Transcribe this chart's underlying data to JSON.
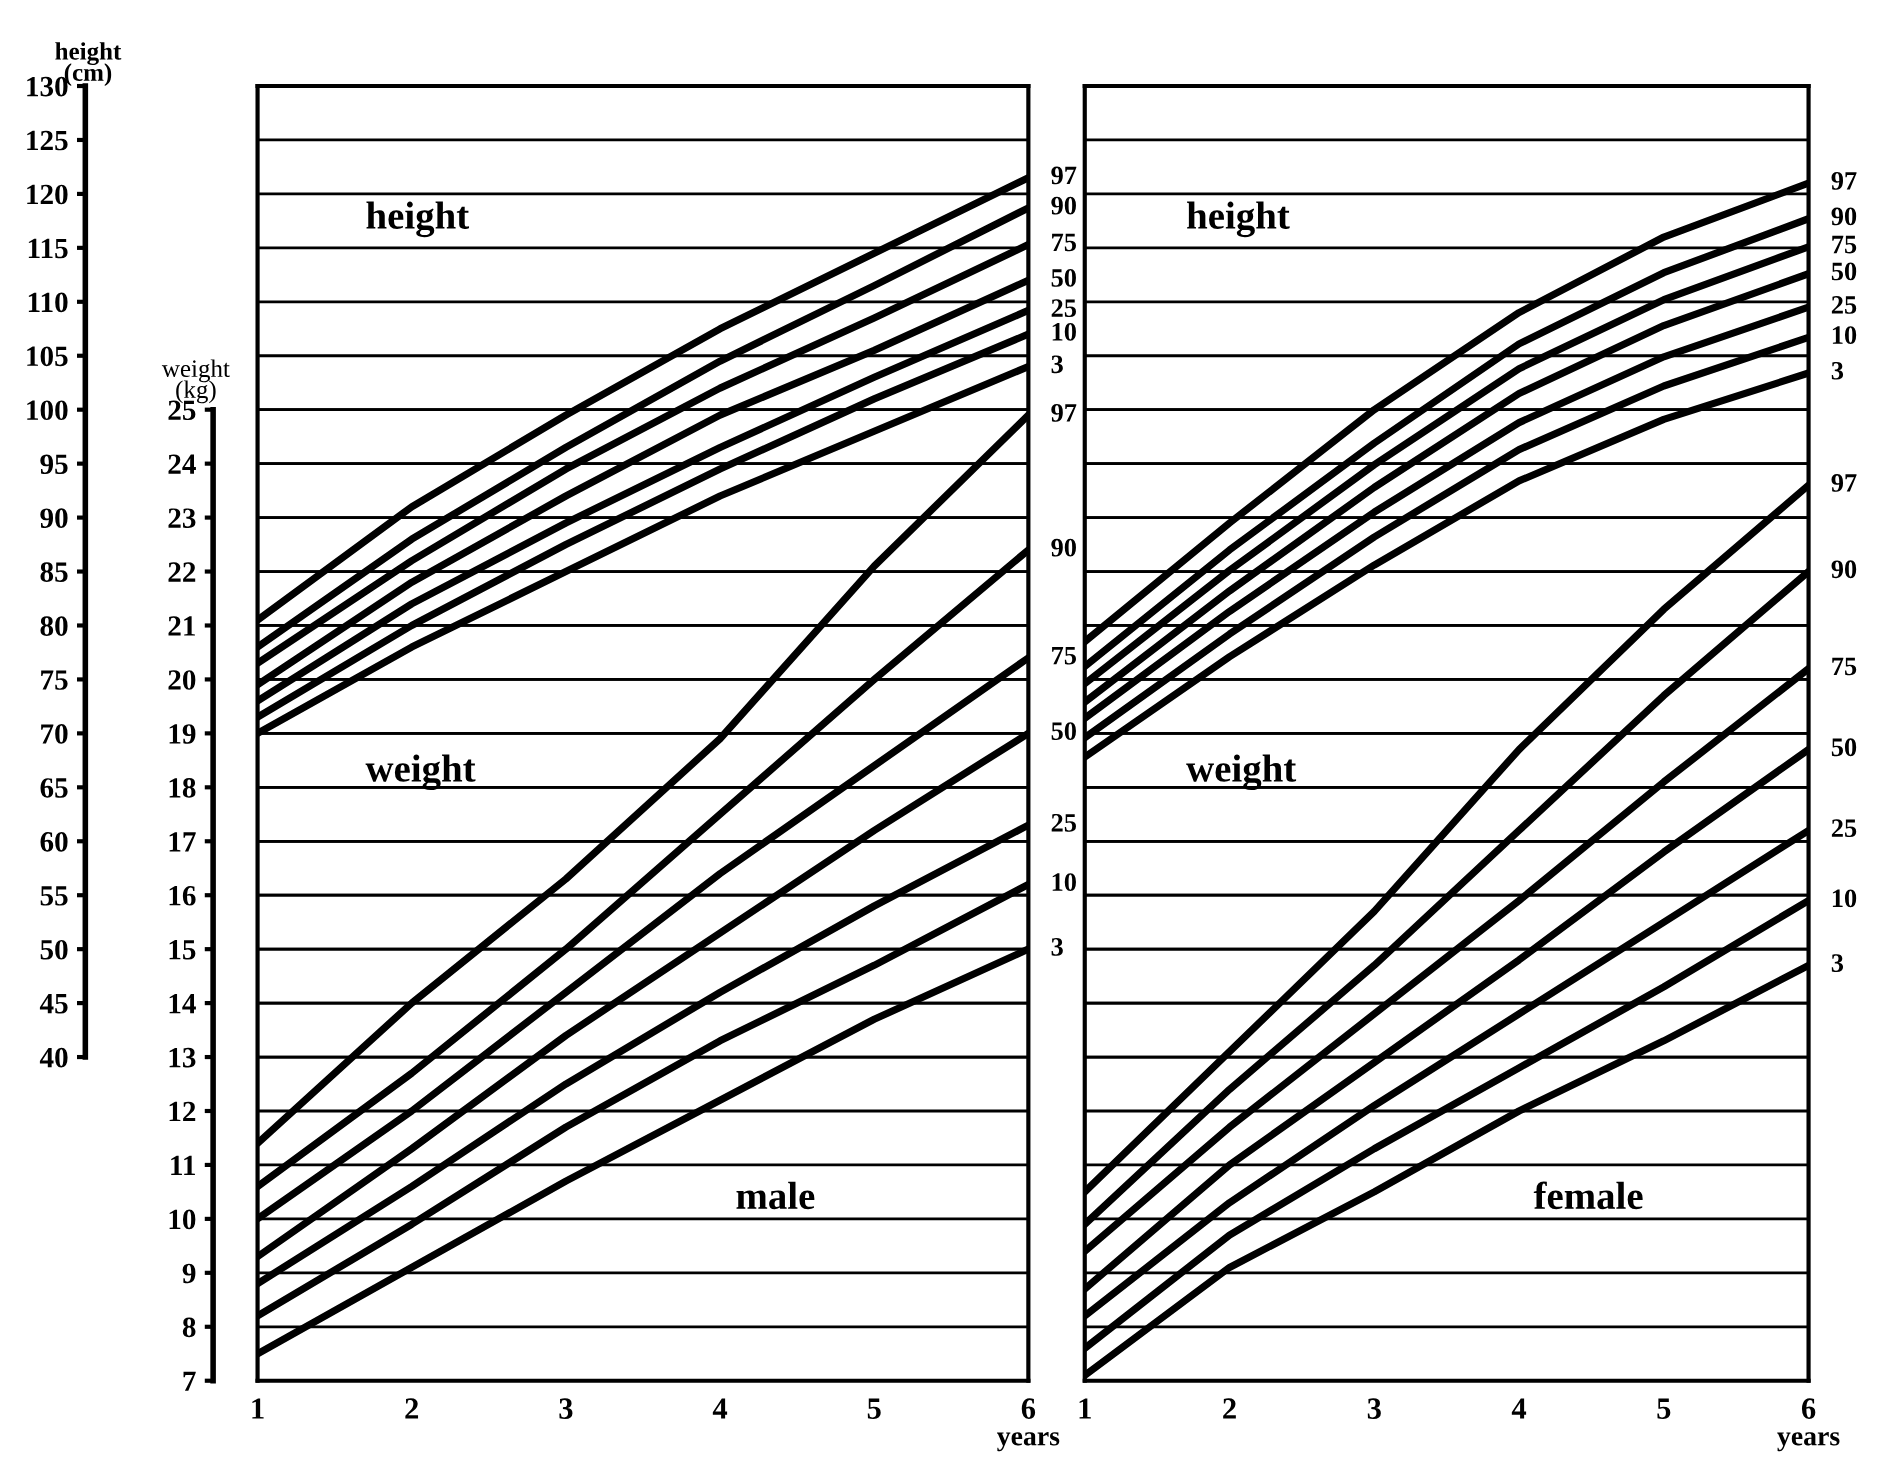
{
  "chart_data": [
    {
      "type": "line",
      "x": [
        1,
        2,
        3,
        4,
        5,
        6
      ],
      "xlim": [
        1,
        6
      ],
      "xticks": [
        1,
        2,
        3,
        4,
        5,
        6
      ],
      "xlabel": "years",
      "ylabel": "height\n(cm)",
      "y2label": "weight\n(kg)",
      "ylim": [
        10,
        130
      ],
      "yticks": [
        40,
        45,
        50,
        55,
        60,
        65,
        70,
        75,
        80,
        85,
        90,
        95,
        100,
        105,
        110,
        115,
        120,
        125,
        130
      ],
      "y2lim": [
        7,
        31
      ],
      "y2ticks": [
        7,
        8,
        9,
        10,
        11,
        12,
        13,
        14,
        15,
        16,
        17,
        18,
        19,
        20,
        21,
        22,
        23,
        24,
        25
      ],
      "grid": "y",
      "line_style": "solid",
      "annotations": [
        "height",
        "weight",
        "male"
      ],
      "series": [
        {
          "name": "97",
          "color": "#000000",
          "values": [
            80.5,
            91,
            99.5,
            107.5,
            114.5,
            121.5
          ]
        },
        {
          "name": "90",
          "color": "#000000",
          "values": [
            78,
            88,
            96.5,
            104.5,
            111.5,
            118.7
          ]
        },
        {
          "name": "75",
          "color": "#000000",
          "values": [
            76.5,
            86,
            94.5,
            102,
            108.5,
            115.3
          ]
        },
        {
          "name": "50",
          "color": "#000000",
          "values": [
            74.5,
            84,
            92,
            99.5,
            105.5,
            112
          ]
        },
        {
          "name": "25",
          "color": "#000000",
          "values": [
            73,
            82,
            89.5,
            96.5,
            103,
            109.2
          ]
        },
        {
          "name": "10",
          "color": "#000000",
          "values": [
            71.5,
            80,
            87.5,
            94.5,
            101,
            107
          ]
        },
        {
          "name": "3",
          "color": "#000000",
          "values": [
            70,
            78,
            85,
            92,
            98,
            104
          ]
        },
        {
          "name": "97",
          "color": "#000000",
          "axis": "y2",
          "values": [
            11.4,
            14,
            16.3,
            18.9,
            22.1,
            24.9
          ]
        },
        {
          "name": "90",
          "color": "#000000",
          "axis": "y2",
          "values": [
            10.6,
            12.7,
            15,
            17.5,
            20,
            22.4
          ]
        },
        {
          "name": "75",
          "color": "#000000",
          "axis": "y2",
          "values": [
            10,
            12,
            14.2,
            16.4,
            18.4,
            20.4
          ]
        },
        {
          "name": "50",
          "color": "#000000",
          "axis": "y2",
          "values": [
            9.3,
            11.3,
            13.4,
            15.3,
            17.2,
            19
          ]
        },
        {
          "name": "25",
          "color": "#000000",
          "axis": "y2",
          "values": [
            8.8,
            10.6,
            12.5,
            14.2,
            15.8,
            17.3
          ]
        },
        {
          "name": "10",
          "color": "#000000",
          "axis": "y2",
          "values": [
            8.2,
            9.9,
            11.7,
            13.3,
            14.7,
            16.2
          ]
        },
        {
          "name": "3",
          "color": "#000000",
          "axis": "y2",
          "values": [
            7.5,
            9.1,
            10.7,
            12.2,
            13.7,
            15
          ]
        }
      ]
    },
    {
      "type": "line",
      "x": [
        1,
        2,
        3,
        4,
        5,
        6
      ],
      "xlim": [
        1,
        6
      ],
      "xticks": [
        1,
        2,
        3,
        4,
        5,
        6
      ],
      "xlabel": "years",
      "tick_labels": "x",
      "ylim": [
        10,
        130
      ],
      "yticks": [
        40,
        45,
        50,
        55,
        60,
        65,
        70,
        75,
        80,
        85,
        90,
        95,
        100,
        105,
        110,
        115,
        120,
        125,
        130
      ],
      "y2lim": [
        7,
        31
      ],
      "y2ticks": [
        7,
        8,
        9,
        10,
        11,
        12,
        13,
        14,
        15,
        16,
        17,
        18,
        19,
        20,
        21,
        22,
        23,
        24,
        25
      ],
      "grid": "y",
      "line_style": "solid",
      "annotations": [
        "height",
        "weight",
        "female"
      ],
      "series": [
        {
          "name": "97",
          "color": "#000000",
          "values": [
            78.5,
            89.5,
            100,
            109,
            116,
            121
          ]
        },
        {
          "name": "90",
          "color": "#000000",
          "values": [
            76.2,
            87,
            96.9,
            106.1,
            112.7,
            117.7
          ]
        },
        {
          "name": "75",
          "color": "#000000",
          "values": [
            74.6,
            85.1,
            94.9,
            103.8,
            110.2,
            115.1
          ]
        },
        {
          "name": "50",
          "color": "#000000",
          "values": [
            72.9,
            83.2,
            92.8,
            101.5,
            107.8,
            112.6
          ]
        },
        {
          "name": "25",
          "color": "#000000",
          "values": [
            71.4,
            81.3,
            90.5,
            98.8,
            104.9,
            109.5
          ]
        },
        {
          "name": "10",
          "color": "#000000",
          "values": [
            69.6,
            79.2,
            88.2,
            96.3,
            102.2,
            106.7
          ]
        },
        {
          "name": "3",
          "color": "#000000",
          "values": [
            67.8,
            77.1,
            85.6,
            93.4,
            99.1,
            103.4
          ]
        },
        {
          "name": "97",
          "color": "#000000",
          "axis": "y2",
          "values": [
            10.5,
            13.1,
            15.7,
            18.7,
            21.3,
            23.6
          ]
        },
        {
          "name": "90",
          "color": "#000000",
          "axis": "y2",
          "values": [
            9.9,
            12.4,
            14.7,
            17.2,
            19.7,
            22
          ]
        },
        {
          "name": "75",
          "color": "#000000",
          "axis": "y2",
          "values": [
            9.4,
            11.7,
            13.8,
            15.9,
            18.1,
            20.2
          ]
        },
        {
          "name": "50",
          "color": "#000000",
          "axis": "y2",
          "values": [
            8.7,
            11,
            12.9,
            14.8,
            16.8,
            18.7
          ]
        },
        {
          "name": "25",
          "color": "#000000",
          "axis": "y2",
          "values": [
            8.2,
            10.3,
            12.1,
            13.8,
            15.5,
            17.2
          ]
        },
        {
          "name": "10",
          "color": "#000000",
          "axis": "y2",
          "values": [
            7.6,
            9.7,
            11.3,
            12.8,
            14.3,
            15.9
          ]
        },
        {
          "name": "3",
          "color": "#000000",
          "axis": "y2",
          "values": [
            7.1,
            9.1,
            10.5,
            12,
            13.3,
            14.7
          ]
        }
      ]
    }
  ]
}
